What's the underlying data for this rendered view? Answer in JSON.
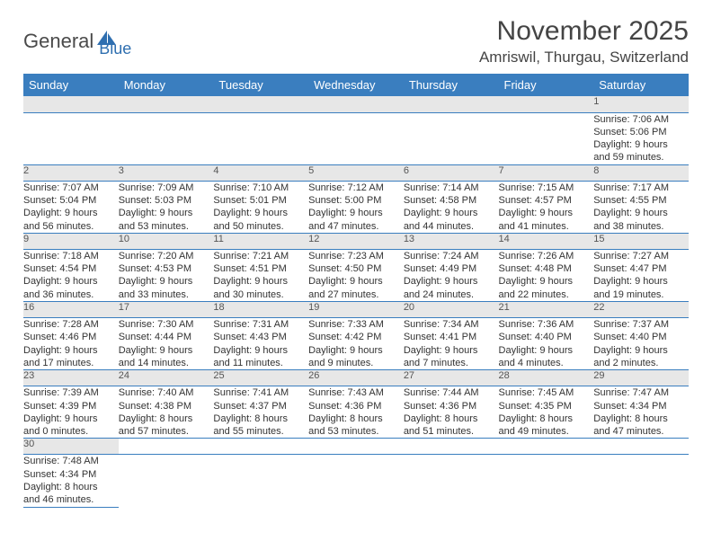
{
  "logo": {
    "part1": "General",
    "part2": "Blue",
    "part2_color": "#2f6fb0",
    "icon_color": "#2f6fb0"
  },
  "header": {
    "month": "November 2025",
    "location": "Amriswil, Thurgau, Switzerland"
  },
  "colors": {
    "header_bg": "#3a7ebf",
    "daynum_bg": "#e7e7e7",
    "rule": "#3a7ebf"
  },
  "weekdays": [
    "Sunday",
    "Monday",
    "Tuesday",
    "Wednesday",
    "Thursday",
    "Friday",
    "Saturday"
  ],
  "weeks": [
    [
      null,
      null,
      null,
      null,
      null,
      null,
      {
        "n": "1",
        "sr": "Sunrise: 7:06 AM",
        "ss": "Sunset: 5:06 PM",
        "d1": "Daylight: 9 hours",
        "d2": "and 59 minutes."
      }
    ],
    [
      {
        "n": "2",
        "sr": "Sunrise: 7:07 AM",
        "ss": "Sunset: 5:04 PM",
        "d1": "Daylight: 9 hours",
        "d2": "and 56 minutes."
      },
      {
        "n": "3",
        "sr": "Sunrise: 7:09 AM",
        "ss": "Sunset: 5:03 PM",
        "d1": "Daylight: 9 hours",
        "d2": "and 53 minutes."
      },
      {
        "n": "4",
        "sr": "Sunrise: 7:10 AM",
        "ss": "Sunset: 5:01 PM",
        "d1": "Daylight: 9 hours",
        "d2": "and 50 minutes."
      },
      {
        "n": "5",
        "sr": "Sunrise: 7:12 AM",
        "ss": "Sunset: 5:00 PM",
        "d1": "Daylight: 9 hours",
        "d2": "and 47 minutes."
      },
      {
        "n": "6",
        "sr": "Sunrise: 7:14 AM",
        "ss": "Sunset: 4:58 PM",
        "d1": "Daylight: 9 hours",
        "d2": "and 44 minutes."
      },
      {
        "n": "7",
        "sr": "Sunrise: 7:15 AM",
        "ss": "Sunset: 4:57 PM",
        "d1": "Daylight: 9 hours",
        "d2": "and 41 minutes."
      },
      {
        "n": "8",
        "sr": "Sunrise: 7:17 AM",
        "ss": "Sunset: 4:55 PM",
        "d1": "Daylight: 9 hours",
        "d2": "and 38 minutes."
      }
    ],
    [
      {
        "n": "9",
        "sr": "Sunrise: 7:18 AM",
        "ss": "Sunset: 4:54 PM",
        "d1": "Daylight: 9 hours",
        "d2": "and 36 minutes."
      },
      {
        "n": "10",
        "sr": "Sunrise: 7:20 AM",
        "ss": "Sunset: 4:53 PM",
        "d1": "Daylight: 9 hours",
        "d2": "and 33 minutes."
      },
      {
        "n": "11",
        "sr": "Sunrise: 7:21 AM",
        "ss": "Sunset: 4:51 PM",
        "d1": "Daylight: 9 hours",
        "d2": "and 30 minutes."
      },
      {
        "n": "12",
        "sr": "Sunrise: 7:23 AM",
        "ss": "Sunset: 4:50 PM",
        "d1": "Daylight: 9 hours",
        "d2": "and 27 minutes."
      },
      {
        "n": "13",
        "sr": "Sunrise: 7:24 AM",
        "ss": "Sunset: 4:49 PM",
        "d1": "Daylight: 9 hours",
        "d2": "and 24 minutes."
      },
      {
        "n": "14",
        "sr": "Sunrise: 7:26 AM",
        "ss": "Sunset: 4:48 PM",
        "d1": "Daylight: 9 hours",
        "d2": "and 22 minutes."
      },
      {
        "n": "15",
        "sr": "Sunrise: 7:27 AM",
        "ss": "Sunset: 4:47 PM",
        "d1": "Daylight: 9 hours",
        "d2": "and 19 minutes."
      }
    ],
    [
      {
        "n": "16",
        "sr": "Sunrise: 7:28 AM",
        "ss": "Sunset: 4:46 PM",
        "d1": "Daylight: 9 hours",
        "d2": "and 17 minutes."
      },
      {
        "n": "17",
        "sr": "Sunrise: 7:30 AM",
        "ss": "Sunset: 4:44 PM",
        "d1": "Daylight: 9 hours",
        "d2": "and 14 minutes."
      },
      {
        "n": "18",
        "sr": "Sunrise: 7:31 AM",
        "ss": "Sunset: 4:43 PM",
        "d1": "Daylight: 9 hours",
        "d2": "and 11 minutes."
      },
      {
        "n": "19",
        "sr": "Sunrise: 7:33 AM",
        "ss": "Sunset: 4:42 PM",
        "d1": "Daylight: 9 hours",
        "d2": "and 9 minutes."
      },
      {
        "n": "20",
        "sr": "Sunrise: 7:34 AM",
        "ss": "Sunset: 4:41 PM",
        "d1": "Daylight: 9 hours",
        "d2": "and 7 minutes."
      },
      {
        "n": "21",
        "sr": "Sunrise: 7:36 AM",
        "ss": "Sunset: 4:40 PM",
        "d1": "Daylight: 9 hours",
        "d2": "and 4 minutes."
      },
      {
        "n": "22",
        "sr": "Sunrise: 7:37 AM",
        "ss": "Sunset: 4:40 PM",
        "d1": "Daylight: 9 hours",
        "d2": "and 2 minutes."
      }
    ],
    [
      {
        "n": "23",
        "sr": "Sunrise: 7:39 AM",
        "ss": "Sunset: 4:39 PM",
        "d1": "Daylight: 9 hours",
        "d2": "and 0 minutes."
      },
      {
        "n": "24",
        "sr": "Sunrise: 7:40 AM",
        "ss": "Sunset: 4:38 PM",
        "d1": "Daylight: 8 hours",
        "d2": "and 57 minutes."
      },
      {
        "n": "25",
        "sr": "Sunrise: 7:41 AM",
        "ss": "Sunset: 4:37 PM",
        "d1": "Daylight: 8 hours",
        "d2": "and 55 minutes."
      },
      {
        "n": "26",
        "sr": "Sunrise: 7:43 AM",
        "ss": "Sunset: 4:36 PM",
        "d1": "Daylight: 8 hours",
        "d2": "and 53 minutes."
      },
      {
        "n": "27",
        "sr": "Sunrise: 7:44 AM",
        "ss": "Sunset: 4:36 PM",
        "d1": "Daylight: 8 hours",
        "d2": "and 51 minutes."
      },
      {
        "n": "28",
        "sr": "Sunrise: 7:45 AM",
        "ss": "Sunset: 4:35 PM",
        "d1": "Daylight: 8 hours",
        "d2": "and 49 minutes."
      },
      {
        "n": "29",
        "sr": "Sunrise: 7:47 AM",
        "ss": "Sunset: 4:34 PM",
        "d1": "Daylight: 8 hours",
        "d2": "and 47 minutes."
      }
    ],
    [
      {
        "n": "30",
        "sr": "Sunrise: 7:48 AM",
        "ss": "Sunset: 4:34 PM",
        "d1": "Daylight: 8 hours",
        "d2": "and 46 minutes."
      },
      null,
      null,
      null,
      null,
      null,
      null
    ]
  ]
}
